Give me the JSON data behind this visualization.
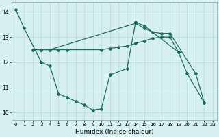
{
  "xlabel": "Humidex (Indice chaleur)",
  "bg_color": "#d6efef",
  "grid_color": "#b8d8d8",
  "line_color": "#1a6b60",
  "xlim": [
    -0.5,
    23.5
  ],
  "ylim": [
    9.7,
    14.4
  ],
  "xticks": [
    0,
    1,
    2,
    3,
    4,
    5,
    6,
    7,
    8,
    9,
    10,
    11,
    12,
    13,
    14,
    15,
    16,
    17,
    18,
    19,
    20,
    21,
    22,
    23
  ],
  "yticks": [
    10,
    11,
    12,
    13,
    14
  ],
  "series": [
    {
      "x": [
        0,
        1,
        3,
        4,
        5,
        6,
        7,
        8,
        9,
        10,
        11,
        13,
        14,
        15,
        19,
        20,
        22
      ],
      "y": [
        14.1,
        13.35,
        12.0,
        11.85,
        10.75,
        10.6,
        10.45,
        10.3,
        10.1,
        10.15,
        11.5,
        11.75,
        13.6,
        13.45,
        12.4,
        11.55,
        10.4
      ]
    },
    {
      "x": [
        2,
        3,
        4,
        5,
        6,
        10,
        11,
        12,
        13,
        14,
        15,
        16,
        17,
        18,
        19
      ],
      "y": [
        12.5,
        12.5,
        12.5,
        12.5,
        12.5,
        12.5,
        12.55,
        12.6,
        12.65,
        12.75,
        12.85,
        12.95,
        13.0,
        13.0,
        12.4
      ]
    },
    {
      "x": [
        2,
        3,
        4,
        14,
        15,
        16,
        17,
        18,
        21,
        22
      ],
      "y": [
        12.5,
        12.5,
        12.5,
        13.55,
        13.35,
        13.2,
        13.15,
        13.15,
        11.55,
        10.4
      ]
    }
  ]
}
